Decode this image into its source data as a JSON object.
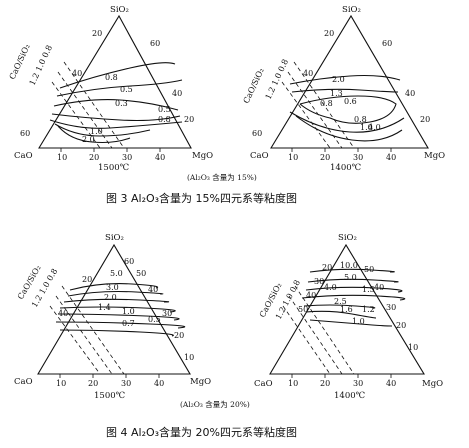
{
  "figures": [
    {
      "caption": "图 3   Al₂O₃含量为 15%四元系等粘度图",
      "note": "(Al₂O₃ 含量为 15%)",
      "diagrams": [
        {
          "top": "SiO₂",
          "left": "CaO",
          "right": "MgO",
          "temp": "1500℃",
          "ratio_label": "CaO/SiO₂",
          "ratio_values": "1.2 1.0 0.8",
          "bottom_ticks": [
            "10",
            "20",
            "30",
            "40"
          ],
          "left_ticks": [
            "20",
            "40",
            "60"
          ],
          "right_ticks": [
            "60",
            "40",
            "20"
          ],
          "isolines": [
            "0.8",
            "0.5",
            "0.3",
            "0.5",
            "0.8",
            "1.0",
            "2.0"
          ]
        },
        {
          "top": "SiO₂",
          "left": "CaO",
          "right": "MgO",
          "temp": "1400℃",
          "ratio_label": "CaO/SiO₂",
          "ratio_values": "1.2 1.0 0.8",
          "bottom_ticks": [
            "10",
            "20",
            "30",
            "40"
          ],
          "left_ticks": [
            "20",
            "40",
            "60"
          ],
          "right_ticks": [
            "60",
            "40",
            "20"
          ],
          "isolines": [
            "2.0",
            "1.3",
            "0.8",
            "0.6",
            "0.8",
            "1.0",
            "4.0"
          ]
        }
      ]
    },
    {
      "caption": "图 4   Al₂O₃含量为 20%四元系等粘度图",
      "note": "(Al₂O₃ 含量为 20%)",
      "diagrams": [
        {
          "top": "SiO₂",
          "left": "CaO",
          "right": "MgO",
          "temp": "1500℃",
          "ratio_label": "CaO/SiO₂",
          "ratio_values": "1.2 1.0 0.8",
          "bottom_ticks": [
            "10",
            "20",
            "30",
            "40"
          ],
          "left_ticks": [
            "20",
            "40"
          ],
          "right_ticks": [
            "60",
            "50",
            "40",
            "30",
            "20",
            "10"
          ],
          "isolines": [
            "5.0",
            "3.0",
            "2.0",
            "1.4",
            "1.0",
            "0.7",
            "0.5"
          ]
        },
        {
          "top": "SiO₂",
          "left": "CaO",
          "right": "MgO",
          "temp": "1400℃",
          "ratio_label": "CaO/SiO₂",
          "ratio_values": "1.2 1.0 0.8",
          "bottom_ticks": [
            "10",
            "20",
            "30",
            "40"
          ],
          "left_ticks": [
            "20",
            "30",
            "40",
            "50"
          ],
          "right_ticks": [
            "50",
            "40",
            "30",
            "20",
            "10"
          ],
          "isolines": [
            "10.0",
            "5.0",
            "4.0",
            "2.5",
            "1.6",
            "1.5",
            "1.2",
            "1.0"
          ]
        }
      ]
    }
  ]
}
